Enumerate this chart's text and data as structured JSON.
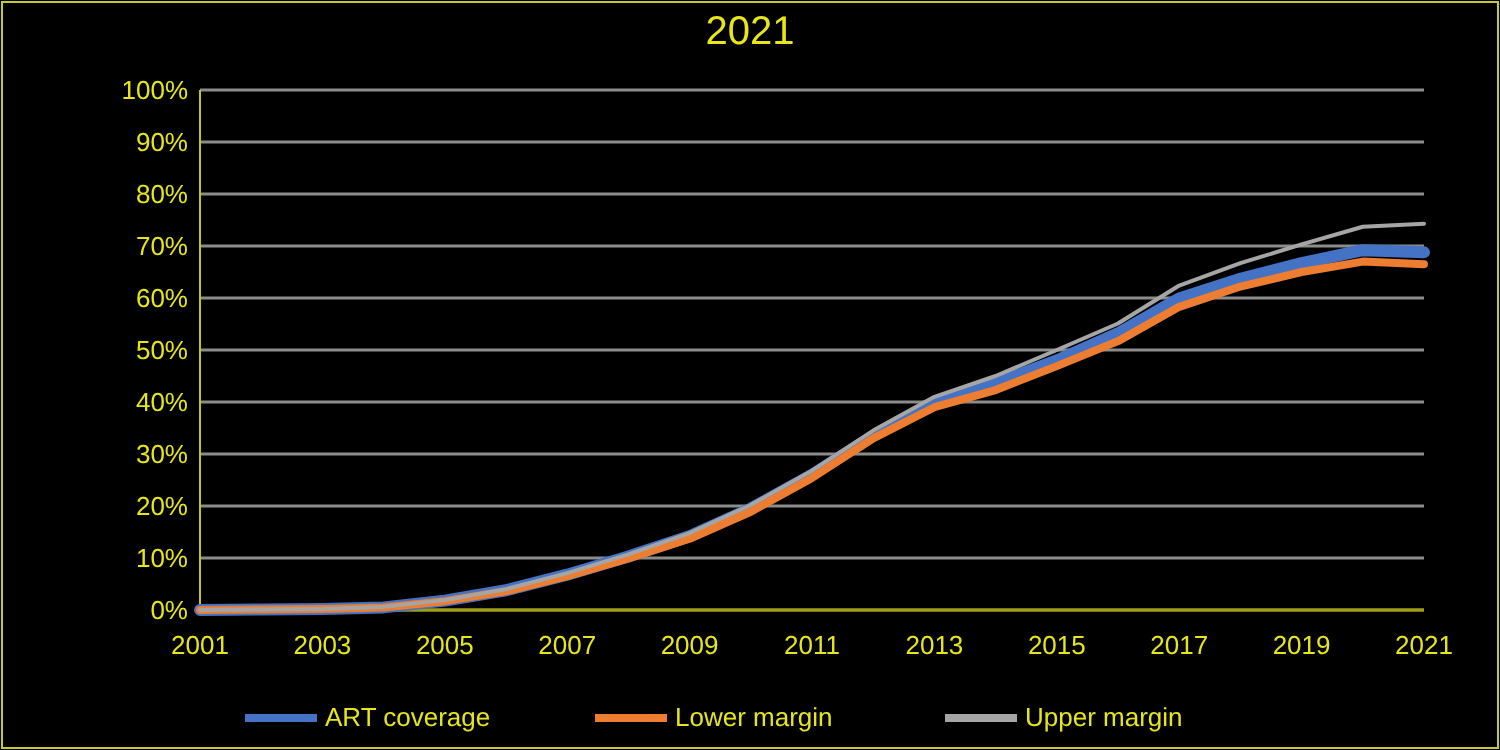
{
  "chart_data": {
    "type": "line",
    "title": "2021",
    "x": [
      2001,
      2002,
      2003,
      2004,
      2005,
      2006,
      2007,
      2008,
      2009,
      2010,
      2011,
      2012,
      2013,
      2014,
      2015,
      2016,
      2017,
      2018,
      2019,
      2020,
      2021
    ],
    "series": [
      {
        "name": "ART coverage",
        "color": "#4472c4",
        "values": [
          0,
          0.1,
          0.2,
          0.5,
          1.8,
          3.8,
          6.8,
          10.3,
          14.2,
          19.5,
          26,
          33.5,
          40,
          43.6,
          48,
          53.2,
          59.9,
          63.7,
          66.7,
          69.2,
          68.8
        ]
      },
      {
        "name": "Lower margin",
        "color": "#ed7d31",
        "values": [
          0,
          0.1,
          0.2,
          0.5,
          1.7,
          3.6,
          6.5,
          9.9,
          13.7,
          18.9,
          25.4,
          33,
          39,
          42.3,
          46.9,
          51.7,
          58.3,
          62.2,
          65,
          67,
          66.5
        ]
      },
      {
        "name": "Upper margin",
        "color": "#a5a5a5",
        "values": [
          0,
          0.1,
          0.2,
          0.6,
          1.9,
          4,
          7.1,
          10.7,
          14.8,
          20.2,
          26.8,
          34.5,
          41,
          45,
          50,
          55.1,
          62.4,
          66.7,
          70.3,
          73.7,
          74.3
        ]
      }
    ],
    "xlim": [
      2001,
      2021
    ],
    "xticks": [
      2001,
      2003,
      2005,
      2007,
      2009,
      2011,
      2013,
      2015,
      2017,
      2019,
      2021
    ],
    "ylim": [
      0,
      100
    ],
    "yticks": [
      {
        "value": 0,
        "label": "0%"
      },
      {
        "value": 10,
        "label": "10%"
      },
      {
        "value": 20,
        "label": "20%"
      },
      {
        "value": 30,
        "label": "30%"
      },
      {
        "value": 40,
        "label": "40%"
      },
      {
        "value": 50,
        "label": "50%"
      },
      {
        "value": 60,
        "label": "60%"
      },
      {
        "value": 70,
        "label": "70%"
      },
      {
        "value": 80,
        "label": "80%"
      },
      {
        "value": 90,
        "label": "90%"
      },
      {
        "value": 100,
        "label": "100%"
      }
    ],
    "grid": "y",
    "legend": "bottom",
    "line_style": "solid"
  }
}
